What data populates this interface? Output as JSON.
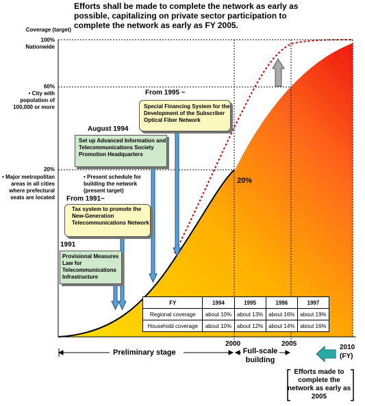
{
  "heading": "Efforts shall be made to complete the network as early as possible, capitalizing on private sector participation to complete the network as early as FY 2005.",
  "axis": {
    "ylabel": "Coverage (target)",
    "levels": [
      {
        "pct": "100%",
        "desc": "Nationwide"
      },
      {
        "pct": "60%",
        "desc": "• City with population of 100,000 or more"
      },
      {
        "pct": "20%",
        "desc": "• Major metropolitan areas in all cities where prefectural seats are located"
      }
    ],
    "years": {
      "y2000": "2000",
      "y2005": "2005",
      "y2010": "2010",
      "fy": "(FY)"
    }
  },
  "curve_marker": "20%",
  "events": [
    {
      "year": "1991",
      "text": "Provisional Measures Law for Telecommunications Infrastructure"
    },
    {
      "year": "From 1991~",
      "text": "Tax system to promote the New-Generation Telecommunications Network"
    },
    {
      "year": "August 1994",
      "text": "Set up Advanced Information and Telecommunications Society Promotion Headquarters",
      "note": "• Present schedule for building the network (present target)"
    },
    {
      "year": "From 1995 ~",
      "text": "Special Financing System for the Development of the Subscriber Optical Fiber Network"
    }
  ],
  "stages": {
    "preliminary": "Preliminary stage",
    "fullscale": "Full-scale building"
  },
  "table": {
    "header": [
      "FY",
      "1994",
      "1995",
      "1996",
      "1997"
    ],
    "rows": [
      [
        "Regional coverage",
        "about 10%",
        "about 13%",
        "about 16%",
        "about 19%"
      ],
      [
        "Household coverage",
        "about 10%",
        "about 12%",
        "about 14%",
        "about 16%"
      ]
    ]
  },
  "note": "Efforts made to complete the network as early as 2005",
  "colors": {
    "gradient_start": "#ffe000",
    "gradient_end": "#f02010",
    "accel_curve": "#cc0000",
    "arrow_fill": "#aaaaaa",
    "teal_arrow": "#2aa9a9"
  }
}
